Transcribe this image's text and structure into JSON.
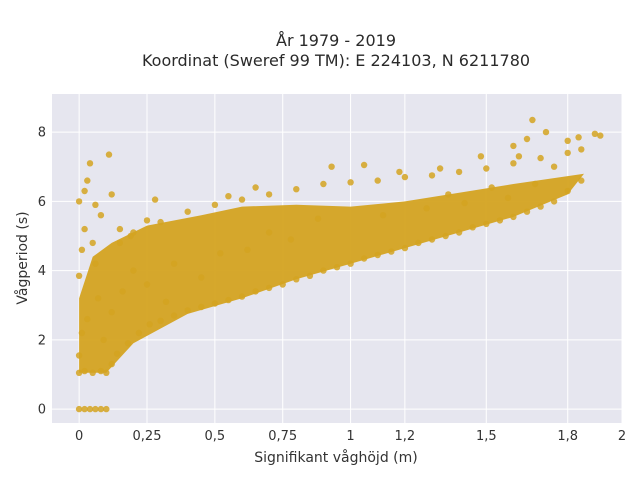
{
  "chart_data": {
    "type": "scatter",
    "title_lines": [
      "År 1979 - 2019",
      "Koordinat (Sweref 99 TM): E 224103, N 6211780"
    ],
    "xlabel": "Signifikant våghöjd (m)",
    "ylabel": "Vågperiod (s)",
    "xlim": [
      -0.1,
      2.0
    ],
    "ylim": [
      -0.4,
      9.1
    ],
    "x_ticks": [
      0,
      0.25,
      0.5,
      0.75,
      1,
      1.2,
      1.5,
      1.8,
      2
    ],
    "x_tick_labels": [
      "0",
      "0,25",
      "0,5",
      "0,75",
      "1",
      "1,2",
      "1,5",
      "1,8",
      "2"
    ],
    "y_ticks": [
      0,
      2,
      4,
      6,
      8
    ],
    "y_tick_labels": [
      "0",
      "2",
      "4",
      "6",
      "8"
    ],
    "grid": true,
    "legend": "none",
    "colors": {
      "marker": "#d4a321",
      "plot_bg": "#e6e6ef",
      "grid": "#ffffff"
    },
    "series": [
      {
        "points": [
          [
            0.0,
            0.0
          ],
          [
            0.02,
            0.0
          ],
          [
            0.04,
            0.0
          ],
          [
            0.06,
            0.0
          ],
          [
            0.08,
            0.0
          ],
          [
            0.1,
            0.0
          ],
          [
            0.0,
            1.05
          ],
          [
            0.02,
            1.1
          ],
          [
            0.05,
            1.05
          ],
          [
            0.08,
            1.1
          ],
          [
            0.1,
            1.05
          ],
          [
            0.12,
            1.3
          ],
          [
            0.0,
            1.55
          ],
          [
            0.01,
            2.2
          ],
          [
            0.0,
            3.85
          ],
          [
            0.01,
            4.6
          ],
          [
            0.02,
            5.2
          ],
          [
            0.0,
            6.0
          ],
          [
            0.02,
            6.3
          ],
          [
            0.03,
            6.6
          ],
          [
            0.04,
            7.1
          ],
          [
            0.06,
            5.9
          ],
          [
            0.08,
            5.6
          ],
          [
            0.12,
            6.2
          ],
          [
            0.15,
            5.2
          ],
          [
            0.19,
            5.0
          ],
          [
            0.25,
            5.45
          ],
          [
            0.28,
            6.05
          ],
          [
            0.11,
            7.35
          ],
          [
            0.05,
            4.8
          ],
          [
            0.03,
            2.6
          ],
          [
            0.07,
            3.2
          ],
          [
            0.09,
            2.0
          ],
          [
            0.14,
            1.6
          ],
          [
            0.18,
            1.9
          ],
          [
            0.22,
            2.2
          ],
          [
            0.26,
            2.45
          ],
          [
            0.3,
            2.55
          ],
          [
            0.35,
            2.7
          ],
          [
            0.4,
            2.85
          ],
          [
            0.45,
            2.95
          ],
          [
            0.5,
            3.05
          ],
          [
            0.55,
            3.15
          ],
          [
            0.6,
            3.25
          ],
          [
            0.65,
            3.4
          ],
          [
            0.7,
            3.5
          ],
          [
            0.75,
            3.6
          ],
          [
            0.8,
            3.75
          ],
          [
            0.85,
            3.85
          ],
          [
            0.9,
            4.0
          ],
          [
            0.95,
            4.1
          ],
          [
            1.0,
            4.2
          ],
          [
            1.05,
            4.35
          ],
          [
            1.1,
            4.45
          ],
          [
            1.15,
            4.55
          ],
          [
            1.2,
            4.65
          ],
          [
            1.25,
            4.8
          ],
          [
            1.3,
            4.9
          ],
          [
            1.35,
            5.0
          ],
          [
            1.4,
            5.1
          ],
          [
            1.45,
            5.25
          ],
          [
            1.5,
            5.35
          ],
          [
            1.55,
            5.45
          ],
          [
            1.6,
            5.55
          ],
          [
            1.65,
            5.7
          ],
          [
            1.7,
            5.85
          ],
          [
            1.75,
            6.0
          ],
          [
            1.8,
            6.3
          ],
          [
            1.85,
            6.6
          ],
          [
            0.15,
            4.8
          ],
          [
            0.2,
            5.1
          ],
          [
            0.3,
            5.4
          ],
          [
            0.4,
            5.7
          ],
          [
            0.5,
            5.9
          ],
          [
            0.6,
            6.05
          ],
          [
            0.7,
            6.2
          ],
          [
            0.8,
            6.35
          ],
          [
            0.9,
            6.5
          ],
          [
            1.0,
            6.55
          ],
          [
            1.1,
            6.6
          ],
          [
            1.2,
            6.7
          ],
          [
            1.3,
            6.75
          ],
          [
            1.4,
            6.85
          ],
          [
            1.5,
            6.95
          ],
          [
            1.6,
            7.1
          ],
          [
            1.7,
            7.25
          ],
          [
            1.8,
            7.4
          ],
          [
            0.93,
            7.0
          ],
          [
            1.05,
            7.05
          ],
          [
            1.18,
            6.85
          ],
          [
            1.33,
            6.95
          ],
          [
            1.48,
            7.3
          ],
          [
            1.62,
            7.3
          ],
          [
            1.75,
            7.0
          ],
          [
            1.85,
            7.5
          ],
          [
            1.84,
            7.85
          ],
          [
            1.9,
            7.95
          ],
          [
            1.72,
            8.0
          ],
          [
            1.8,
            7.75
          ],
          [
            1.67,
            8.35
          ],
          [
            1.6,
            7.6
          ],
          [
            1.65,
            7.8
          ],
          [
            1.92,
            7.9
          ],
          [
            0.52,
            4.5
          ],
          [
            0.7,
            5.1
          ],
          [
            0.88,
            5.5
          ],
          [
            1.12,
            5.6
          ],
          [
            1.28,
            5.8
          ],
          [
            1.42,
            5.95
          ],
          [
            1.58,
            6.1
          ],
          [
            0.35,
            4.2
          ],
          [
            0.45,
            3.8
          ],
          [
            0.62,
            4.6
          ],
          [
            0.78,
            4.9
          ],
          [
            0.25,
            3.6
          ],
          [
            0.32,
            3.1
          ],
          [
            0.12,
            2.8
          ],
          [
            0.16,
            3.4
          ],
          [
            0.2,
            4.0
          ],
          [
            0.06,
            4.2
          ],
          [
            0.65,
            6.4
          ],
          [
            0.55,
            6.15
          ],
          [
            1.36,
            6.2
          ],
          [
            1.52,
            6.4
          ],
          [
            1.68,
            6.5
          ]
        ]
      }
    ]
  }
}
